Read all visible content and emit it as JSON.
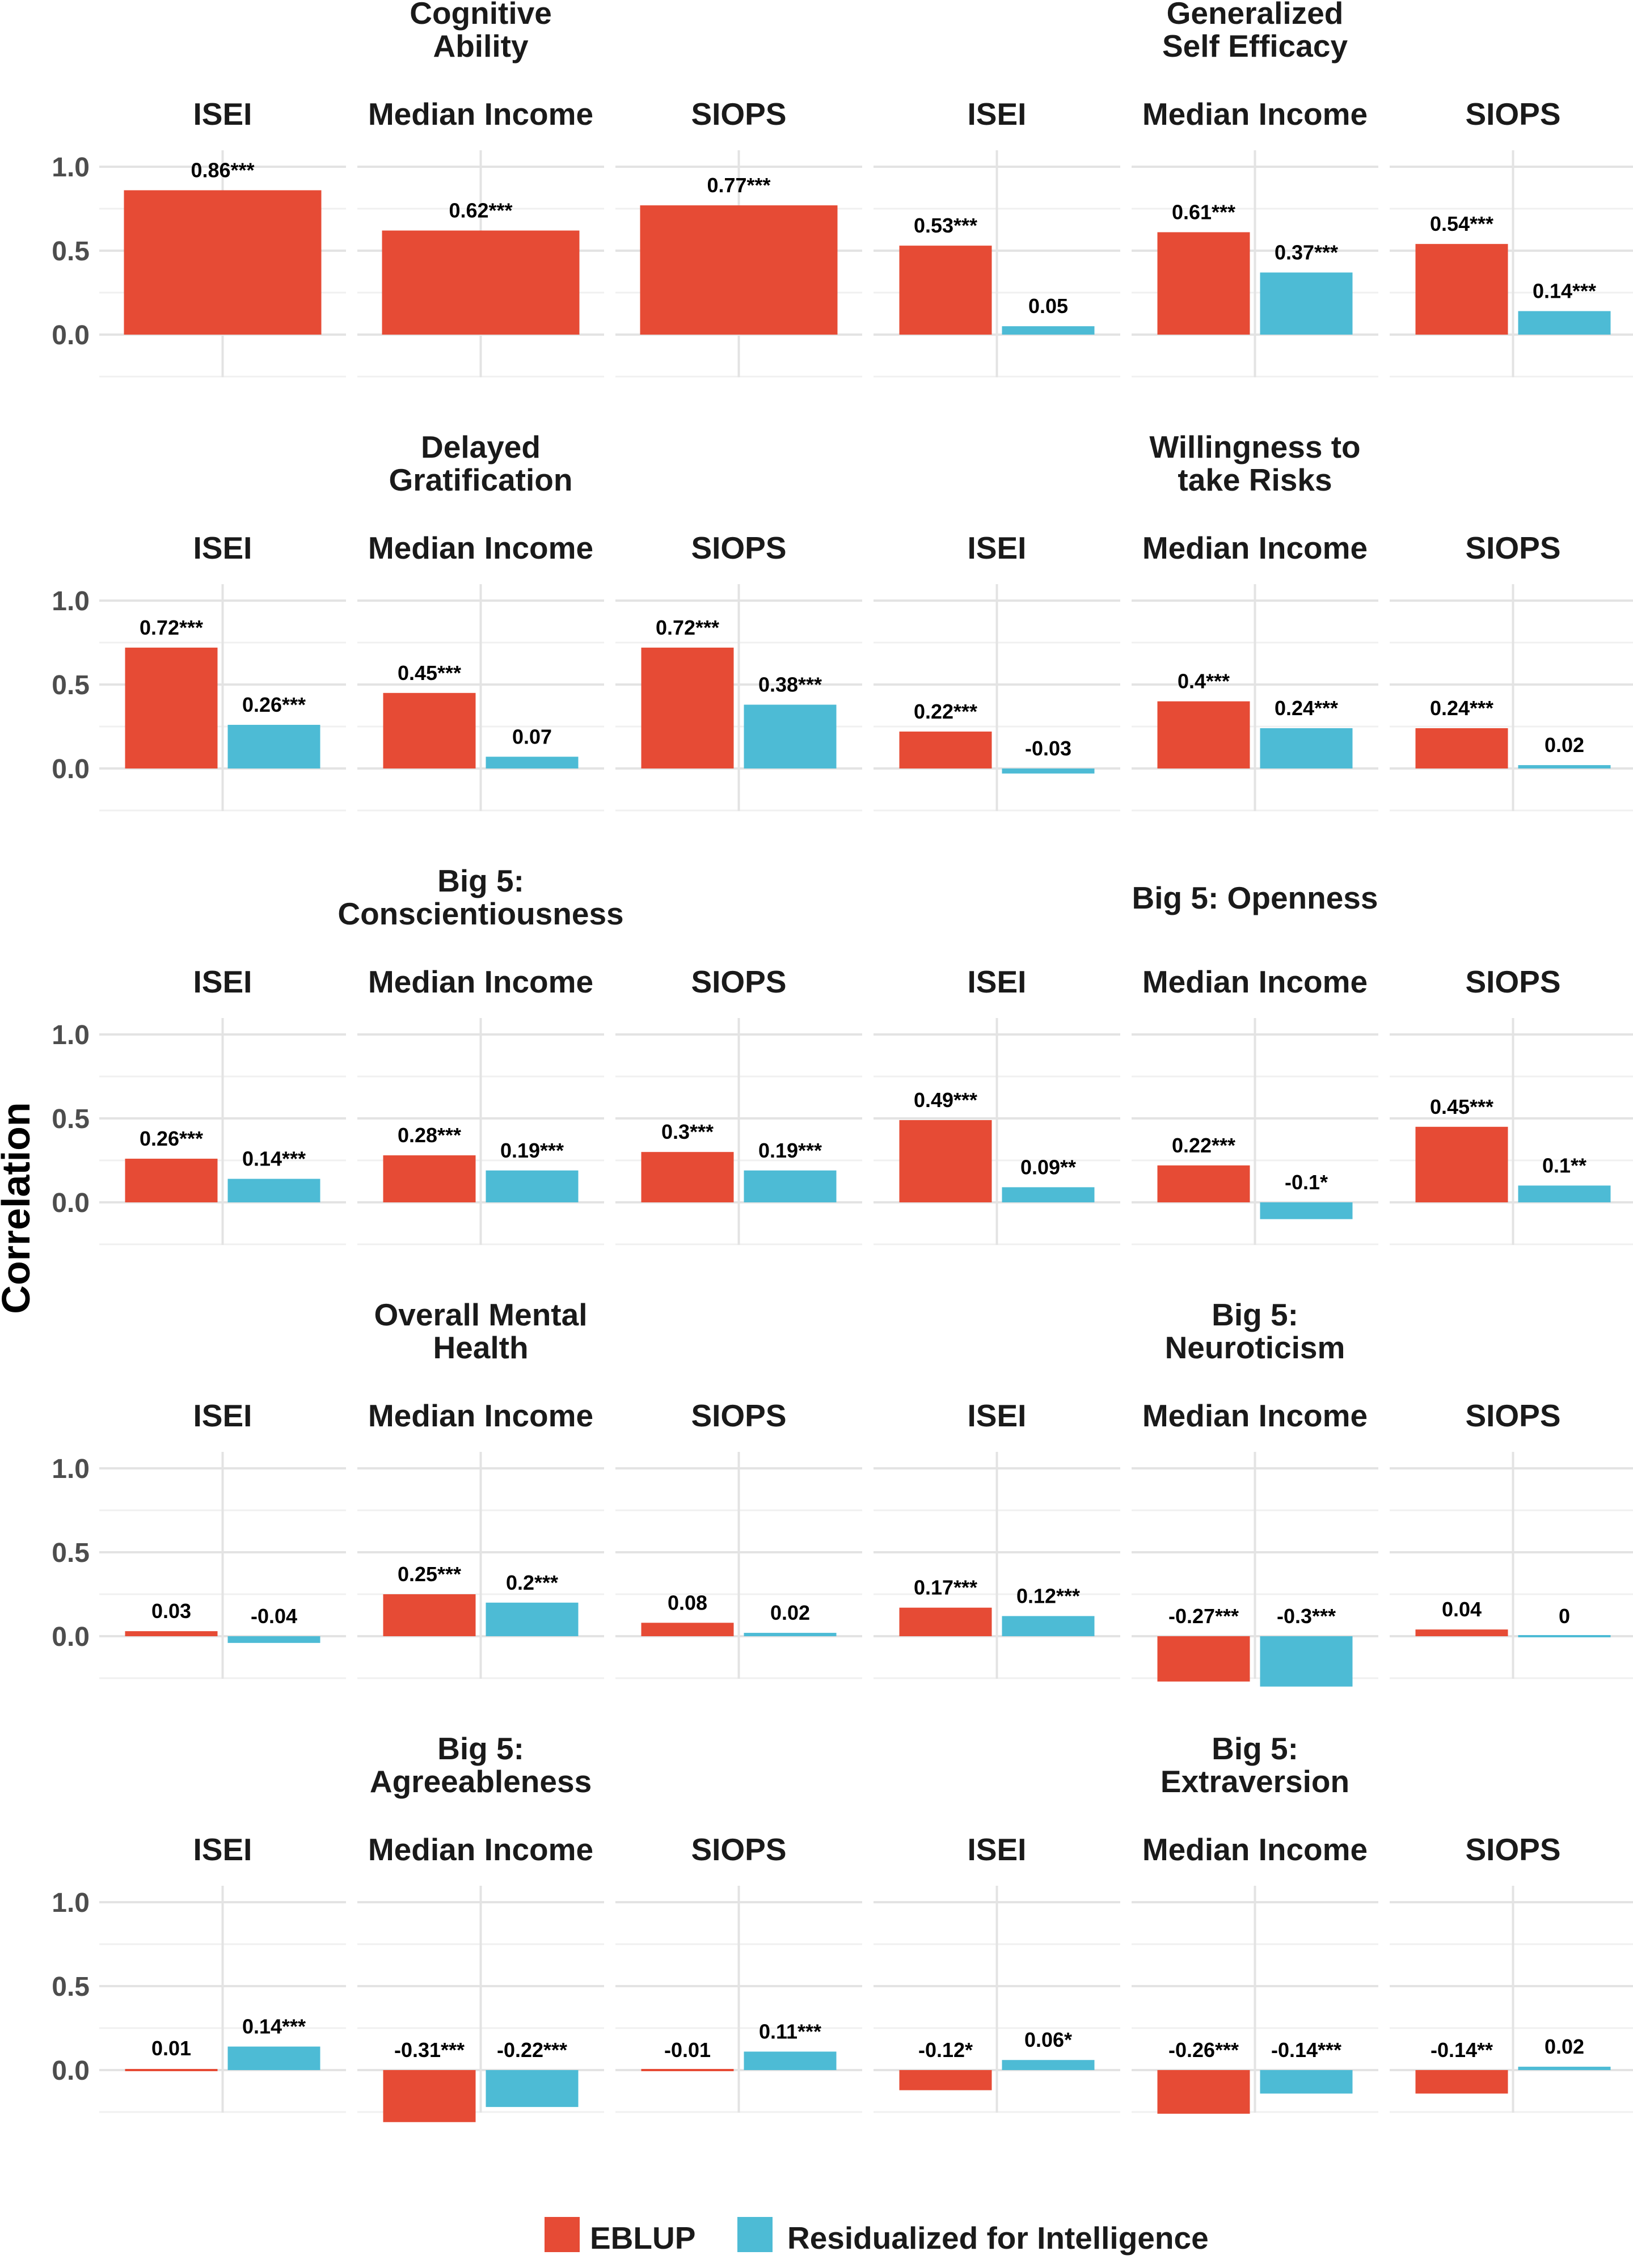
{
  "chart_data": {
    "type": "bar",
    "ylabel": "Correlation",
    "ylim": [
      -0.25,
      1.0
    ],
    "yticks": [
      "0.0",
      "0.5",
      "1.0"
    ],
    "facet_categories": [
      "ISEI",
      "Median Income",
      "SIOPS"
    ],
    "legend": {
      "position": "bottom",
      "entries": [
        {
          "name": "EBLUP",
          "color": "#E64B35"
        },
        {
          "name": "Residualized for Intelligence",
          "color": "#4DBBD5"
        }
      ]
    },
    "panels": [
      {
        "title": [
          "Cognitive",
          "Ability"
        ],
        "facets": [
          {
            "name": "ISEI",
            "values": [
              0.86
            ],
            "labels": [
              "0.86***"
            ]
          },
          {
            "name": "Median Income",
            "values": [
              0.62
            ],
            "labels": [
              "0.62***"
            ]
          },
          {
            "name": "SIOPS",
            "values": [
              0.77
            ],
            "labels": [
              "0.77***"
            ]
          }
        ]
      },
      {
        "title": [
          "Generalized",
          "Self Efficacy"
        ],
        "facets": [
          {
            "name": "ISEI",
            "values": [
              0.53,
              0.05
            ],
            "labels": [
              "0.53***",
              "0.05"
            ]
          },
          {
            "name": "Median Income",
            "values": [
              0.61,
              0.37
            ],
            "labels": [
              "0.61***",
              "0.37***"
            ]
          },
          {
            "name": "SIOPS",
            "values": [
              0.54,
              0.14
            ],
            "labels": [
              "0.54***",
              "0.14***"
            ]
          }
        ]
      },
      {
        "title": [
          "Delayed",
          "Gratification"
        ],
        "facets": [
          {
            "name": "ISEI",
            "values": [
              0.72,
              0.26
            ],
            "labels": [
              "0.72***",
              "0.26***"
            ]
          },
          {
            "name": "Median Income",
            "values": [
              0.45,
              0.07
            ],
            "labels": [
              "0.45***",
              "0.07"
            ]
          },
          {
            "name": "SIOPS",
            "values": [
              0.72,
              0.38
            ],
            "labels": [
              "0.72***",
              "0.38***"
            ]
          }
        ]
      },
      {
        "title": [
          "Willingness to",
          "take Risks"
        ],
        "facets": [
          {
            "name": "ISEI",
            "values": [
              0.22,
              -0.03
            ],
            "labels": [
              "0.22***",
              "-0.03"
            ]
          },
          {
            "name": "Median Income",
            "values": [
              0.4,
              0.24
            ],
            "labels": [
              "0.4***",
              "0.24***"
            ]
          },
          {
            "name": "SIOPS",
            "values": [
              0.24,
              0.02
            ],
            "labels": [
              "0.24***",
              "0.02"
            ]
          }
        ]
      },
      {
        "title": [
          "Big 5:",
          "Conscientiousness"
        ],
        "facets": [
          {
            "name": "ISEI",
            "values": [
              0.26,
              0.14
            ],
            "labels": [
              "0.26***",
              "0.14***"
            ]
          },
          {
            "name": "Median Income",
            "values": [
              0.28,
              0.19
            ],
            "labels": [
              "0.28***",
              "0.19***"
            ]
          },
          {
            "name": "SIOPS",
            "values": [
              0.3,
              0.19
            ],
            "labels": [
              "0.3***",
              "0.19***"
            ]
          }
        ]
      },
      {
        "title": [
          "Big 5: Openness"
        ],
        "facets": [
          {
            "name": "ISEI",
            "values": [
              0.49,
              0.09
            ],
            "labels": [
              "0.49***",
              "0.09**"
            ]
          },
          {
            "name": "Median Income",
            "values": [
              0.22,
              -0.1
            ],
            "labels": [
              "0.22***",
              "-0.1*"
            ]
          },
          {
            "name": "SIOPS",
            "values": [
              0.45,
              0.1
            ],
            "labels": [
              "0.45***",
              "0.1**"
            ]
          }
        ]
      },
      {
        "title": [
          "Overall Mental",
          "Health"
        ],
        "facets": [
          {
            "name": "ISEI",
            "values": [
              0.03,
              -0.04
            ],
            "labels": [
              "0.03",
              "-0.04"
            ]
          },
          {
            "name": "Median Income",
            "values": [
              0.25,
              0.2
            ],
            "labels": [
              "0.25***",
              "0.2***"
            ]
          },
          {
            "name": "SIOPS",
            "values": [
              0.08,
              0.02
            ],
            "labels": [
              "0.08",
              "0.02"
            ]
          }
        ]
      },
      {
        "title": [
          "Big 5:",
          "Neuroticism"
        ],
        "facets": [
          {
            "name": "ISEI",
            "values": [
              0.17,
              0.12
            ],
            "labels": [
              "0.17***",
              "0.12***"
            ]
          },
          {
            "name": "Median Income",
            "values": [
              -0.27,
              -0.3
            ],
            "labels": [
              "-0.27***",
              "-0.3***"
            ]
          },
          {
            "name": "SIOPS",
            "values": [
              0.04,
              0.0
            ],
            "labels": [
              "0.04",
              "0"
            ]
          }
        ]
      },
      {
        "title": [
          "Big 5:",
          "Agreeableness"
        ],
        "facets": [
          {
            "name": "ISEI",
            "values": [
              0.01,
              0.14
            ],
            "labels": [
              "0.01",
              "0.14***"
            ]
          },
          {
            "name": "Median Income",
            "values": [
              -0.31,
              -0.22
            ],
            "labels": [
              "-0.31***",
              "-0.22***"
            ]
          },
          {
            "name": "SIOPS",
            "values": [
              -0.01,
              0.11
            ],
            "labels": [
              "-0.01",
              "0.11***"
            ]
          }
        ]
      },
      {
        "title": [
          "Big 5:",
          "Extraversion"
        ],
        "facets": [
          {
            "name": "ISEI",
            "values": [
              -0.12,
              0.06
            ],
            "labels": [
              "-0.12*",
              "0.06*"
            ]
          },
          {
            "name": "Median Income",
            "values": [
              -0.26,
              -0.14
            ],
            "labels": [
              "-0.26***",
              "-0.14***"
            ]
          },
          {
            "name": "SIOPS",
            "values": [
              -0.14,
              0.02
            ],
            "labels": [
              "-0.14**",
              "0.02"
            ]
          }
        ]
      }
    ]
  }
}
